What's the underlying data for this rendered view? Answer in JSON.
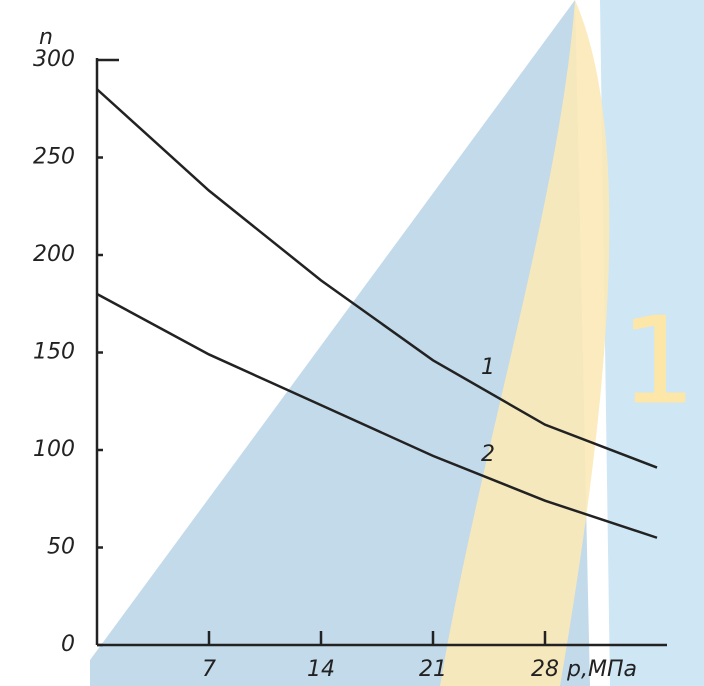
{
  "chart_data": {
    "type": "line",
    "x": [
      0,
      7,
      14,
      21,
      28,
      35
    ],
    "series": [
      {
        "name": "1",
        "color": "#222222",
        "values": [
          285,
          233,
          187,
          146,
          113,
          91
        ]
      },
      {
        "name": "2",
        "color": "#222222",
        "values": [
          180,
          149,
          123,
          97,
          74,
          55
        ]
      }
    ],
    "x_label": "p,МПа",
    "y_label": "n",
    "xlim": [
      0,
      35
    ],
    "xticks": [
      7,
      14,
      21,
      28
    ],
    "ylim": [
      0,
      300
    ],
    "yticks": [
      0,
      50,
      100,
      150,
      200,
      250,
      300
    ]
  }
}
